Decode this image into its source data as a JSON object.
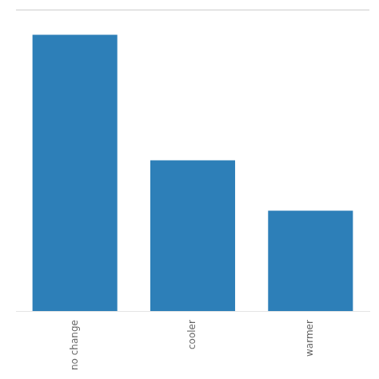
{
  "chart_data": {
    "type": "bar",
    "categories": [
      "no change",
      "cooler",
      "warmer"
    ],
    "values": [
      55,
      30,
      20
    ],
    "color": "#2d7fb8",
    "ylim": [
      0,
      60
    ],
    "yticks": [],
    "grid": false,
    "tick_labels": "x"
  }
}
